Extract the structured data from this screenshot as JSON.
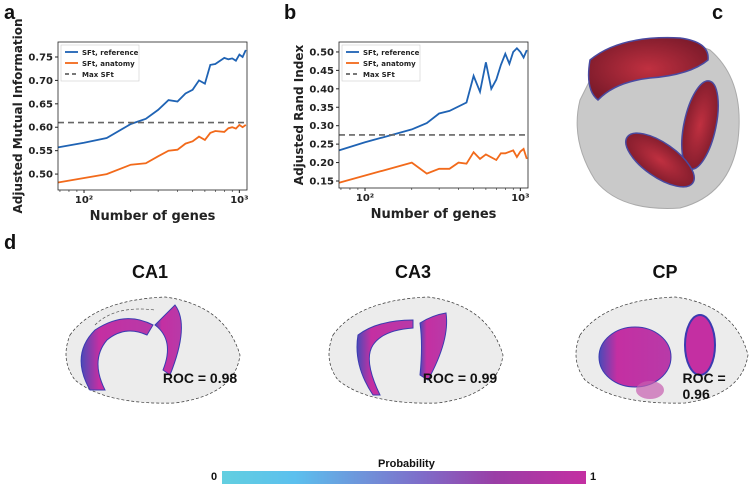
{
  "panels": {
    "a": "a",
    "b": "b",
    "c": "c",
    "d": "d"
  },
  "chart_data": [
    {
      "type": "line",
      "panel": "a",
      "xlabel": "Number of genes",
      "ylabel": "Adjusted Mutual Information",
      "xscale": "log",
      "xlim": [
        68,
        1120
      ],
      "ylim": [
        0.466,
        0.782
      ],
      "xticks": [
        {
          "value": 100,
          "label": "10²"
        },
        {
          "value": 1000,
          "label": "10³"
        }
      ],
      "yticks": [
        0.5,
        0.55,
        0.6,
        0.65,
        0.7,
        0.75
      ],
      "legend": "top-left",
      "grid": false,
      "series": [
        {
          "name": "SFt, reference",
          "color": "#1f63b4",
          "style": "solid",
          "x": [
            68,
            100,
            140,
            200,
            250,
            300,
            350,
            400,
            450,
            500,
            550,
            600,
            650,
            700,
            800,
            850,
            900,
            950,
            1000,
            1050,
            1100
          ],
          "y": [
            0.557,
            0.567,
            0.577,
            0.607,
            0.618,
            0.637,
            0.658,
            0.655,
            0.672,
            0.68,
            0.7,
            0.693,
            0.733,
            0.735,
            0.748,
            0.745,
            0.747,
            0.742,
            0.755,
            0.75,
            0.765
          ]
        },
        {
          "name": "SFt, anatomy",
          "color": "#f26a1b",
          "style": "solid",
          "x": [
            68,
            140,
            200,
            250,
            300,
            350,
            400,
            450,
            500,
            550,
            600,
            650,
            700,
            800,
            850,
            900,
            950,
            1000,
            1050,
            1100
          ],
          "y": [
            0.482,
            0.5,
            0.52,
            0.523,
            0.538,
            0.55,
            0.552,
            0.565,
            0.57,
            0.58,
            0.573,
            0.588,
            0.592,
            0.59,
            0.598,
            0.6,
            0.597,
            0.605,
            0.6,
            0.605
          ]
        },
        {
          "name": "Max SFt",
          "color": "#666666",
          "style": "dashed",
          "x": [
            68,
            1120
          ],
          "y": [
            0.61,
            0.61
          ]
        }
      ]
    },
    {
      "type": "line",
      "panel": "b",
      "xlabel": "Number of genes",
      "ylabel": "Adjusted Rand Index",
      "xscale": "log",
      "xlim": [
        68,
        1120
      ],
      "ylim": [
        0.131,
        0.527
      ],
      "xticks": [
        {
          "value": 100,
          "label": "10²"
        },
        {
          "value": 1000,
          "label": "10³"
        }
      ],
      "yticks": [
        0.15,
        0.2,
        0.25,
        0.3,
        0.35,
        0.4,
        0.45,
        0.5
      ],
      "legend": "top-left",
      "grid": false,
      "series": [
        {
          "name": "SFt, reference",
          "color": "#1f63b4",
          "style": "solid",
          "x": [
            68,
            100,
            200,
            250,
            300,
            350,
            450,
            500,
            550,
            600,
            650,
            700,
            750,
            800,
            850,
            900,
            950,
            1000,
            1050,
            1100
          ],
          "y": [
            0.233,
            0.255,
            0.29,
            0.307,
            0.333,
            0.34,
            0.363,
            0.435,
            0.392,
            0.472,
            0.4,
            0.425,
            0.465,
            0.495,
            0.468,
            0.5,
            0.51,
            0.5,
            0.485,
            0.505
          ]
        },
        {
          "name": "SFt, anatomy",
          "color": "#f26a1b",
          "style": "solid",
          "x": [
            68,
            200,
            250,
            300,
            350,
            400,
            450,
            500,
            550,
            600,
            700,
            750,
            800,
            900,
            950,
            1000,
            1050,
            1100
          ],
          "y": [
            0.145,
            0.2,
            0.17,
            0.183,
            0.183,
            0.2,
            0.197,
            0.228,
            0.21,
            0.222,
            0.207,
            0.225,
            0.225,
            0.233,
            0.215,
            0.23,
            0.237,
            0.21
          ]
        },
        {
          "name": "Max SFt",
          "color": "#666666",
          "style": "dashed",
          "x": [
            68,
            1120
          ],
          "y": [
            0.275,
            0.275
          ]
        }
      ]
    }
  ],
  "regions": [
    {
      "title": "CA1",
      "roc": "ROC = 0.98"
    },
    {
      "title": "CA3",
      "roc": "ROC = 0.99"
    },
    {
      "title": "CP",
      "roc": "ROC = 0.96"
    }
  ],
  "colorbar": {
    "title": "Probability",
    "min": "0",
    "max": "1",
    "colors": [
      "#62cfe0",
      "#7f6cc9",
      "#c42fa2"
    ]
  }
}
